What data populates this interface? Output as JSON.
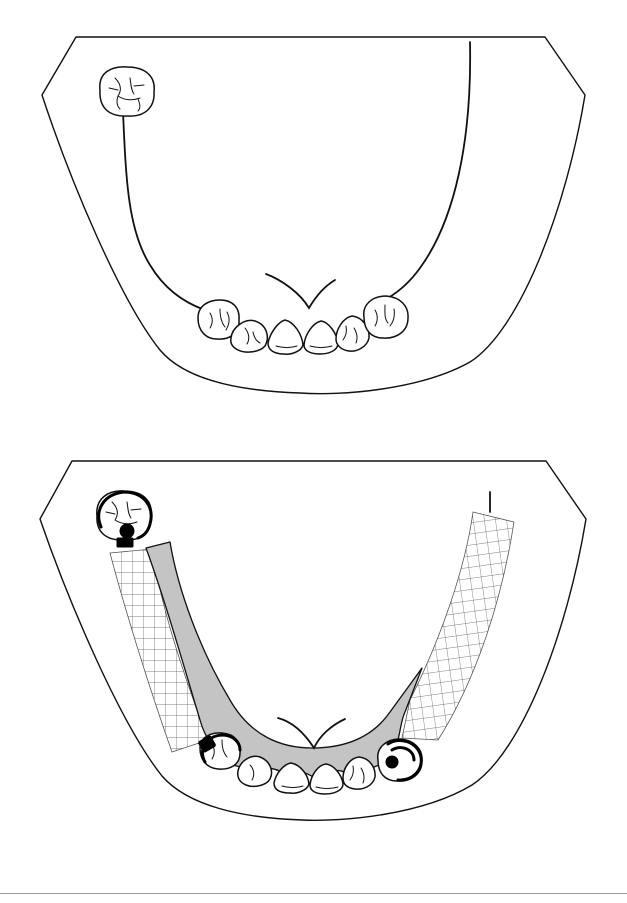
{
  "figures": [
    {
      "id": "mandibular-arch-edentulous",
      "remaining_teeth": [
        "left-molar",
        "right-premolar",
        "right-canine",
        "right-lateral-incisor",
        "right-central-incisor",
        "left-central-incisor",
        "left-lateral-incisor",
        "left-canine",
        "left-premolar"
      ]
    },
    {
      "id": "mandibular-arch-with-rpd-framework",
      "components": [
        "major-connector",
        "occlusal-rest",
        "retention-mesh",
        "clasp"
      ]
    }
  ],
  "colors": {
    "line": "#111111",
    "framework_metal": "#c4c4c4",
    "rest": "#000000",
    "background": "#ffffff",
    "mesh": "#555555"
  }
}
